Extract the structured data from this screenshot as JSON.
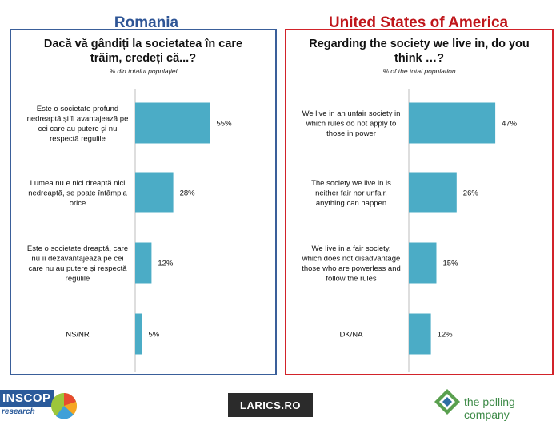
{
  "chart_data": [
    {
      "type": "bar",
      "orientation": "horizontal",
      "country": "Romania",
      "title": "Dacă vă gândiți la societatea în care trăim, credeți că...?",
      "subtitle": "% din totalul populației",
      "categories": [
        "Este o societate profund nedreaptă și îi avantajează pe cei care au putere și nu respectă regulile",
        "Lumea nu e nici dreaptă nici nedreaptă, se poate întâmpla orice",
        "Este o societate dreaptă, care nu îi dezavantajează pe cei care nu au putere și respectă regulile",
        "NS/NR"
      ],
      "values": [
        55,
        28,
        12,
        5
      ],
      "value_labels": [
        "55%",
        "28%",
        "12%",
        "5%"
      ],
      "bar_color": "#4bacc6"
    },
    {
      "type": "bar",
      "orientation": "horizontal",
      "country": "United States of America",
      "title": "Regarding the society we live in, do you think …?",
      "subtitle": "% of the total population",
      "categories": [
        "We live in an unfair society in which rules do not apply to those in power",
        "The society we live in is neither fair nor unfair, anything can happen",
        "We live in a fair society, which does not disadvantage those who are powerless and follow the rules",
        "DK/NA"
      ],
      "values": [
        47,
        26,
        15,
        12
      ],
      "value_labels": [
        "47%",
        "26%",
        "15%",
        "12%"
      ],
      "bar_color": "#4bacc6"
    }
  ],
  "labels_wrapped": [
    [
      [
        "Este o societate profund",
        "nedreaptă și îi avantajează pe",
        "cei care au putere și nu",
        "respectă regulile"
      ],
      [
        "Lumea nu e nici dreaptă nici",
        "nedreaptă, se poate întâmpla",
        "orice"
      ],
      [
        "Este o societate dreaptă, care",
        "nu îi dezavantajează pe cei",
        "care nu au putere și respectă",
        "regulile"
      ],
      [
        "NS/NR"
      ]
    ],
    [
      [
        "We live in an unfair society in",
        "which rules do not apply to",
        "those in power"
      ],
      [
        "The society we live in is",
        "neither fair nor unfair,",
        "anything can happen"
      ],
      [
        "We live in a fair society,",
        "which does not disadvantage",
        "those who are powerless and",
        "follow the rules"
      ],
      [
        "DK/NA"
      ]
    ]
  ],
  "titles_wrapped": [
    [
      "Dacă vă gândiți la societatea în care",
      "trăim, credeți că...?"
    ],
    [
      "Regarding the society we live in, do you",
      "think …?"
    ]
  ],
  "logos": {
    "inscop": "INSCOP",
    "inscop_sub": "research",
    "larics": "LARICS.RO",
    "polling": "the polling company"
  },
  "colors": {
    "romania_title": "#2e5596",
    "usa_title": "#c0161b",
    "bar": "#4bacc6"
  }
}
